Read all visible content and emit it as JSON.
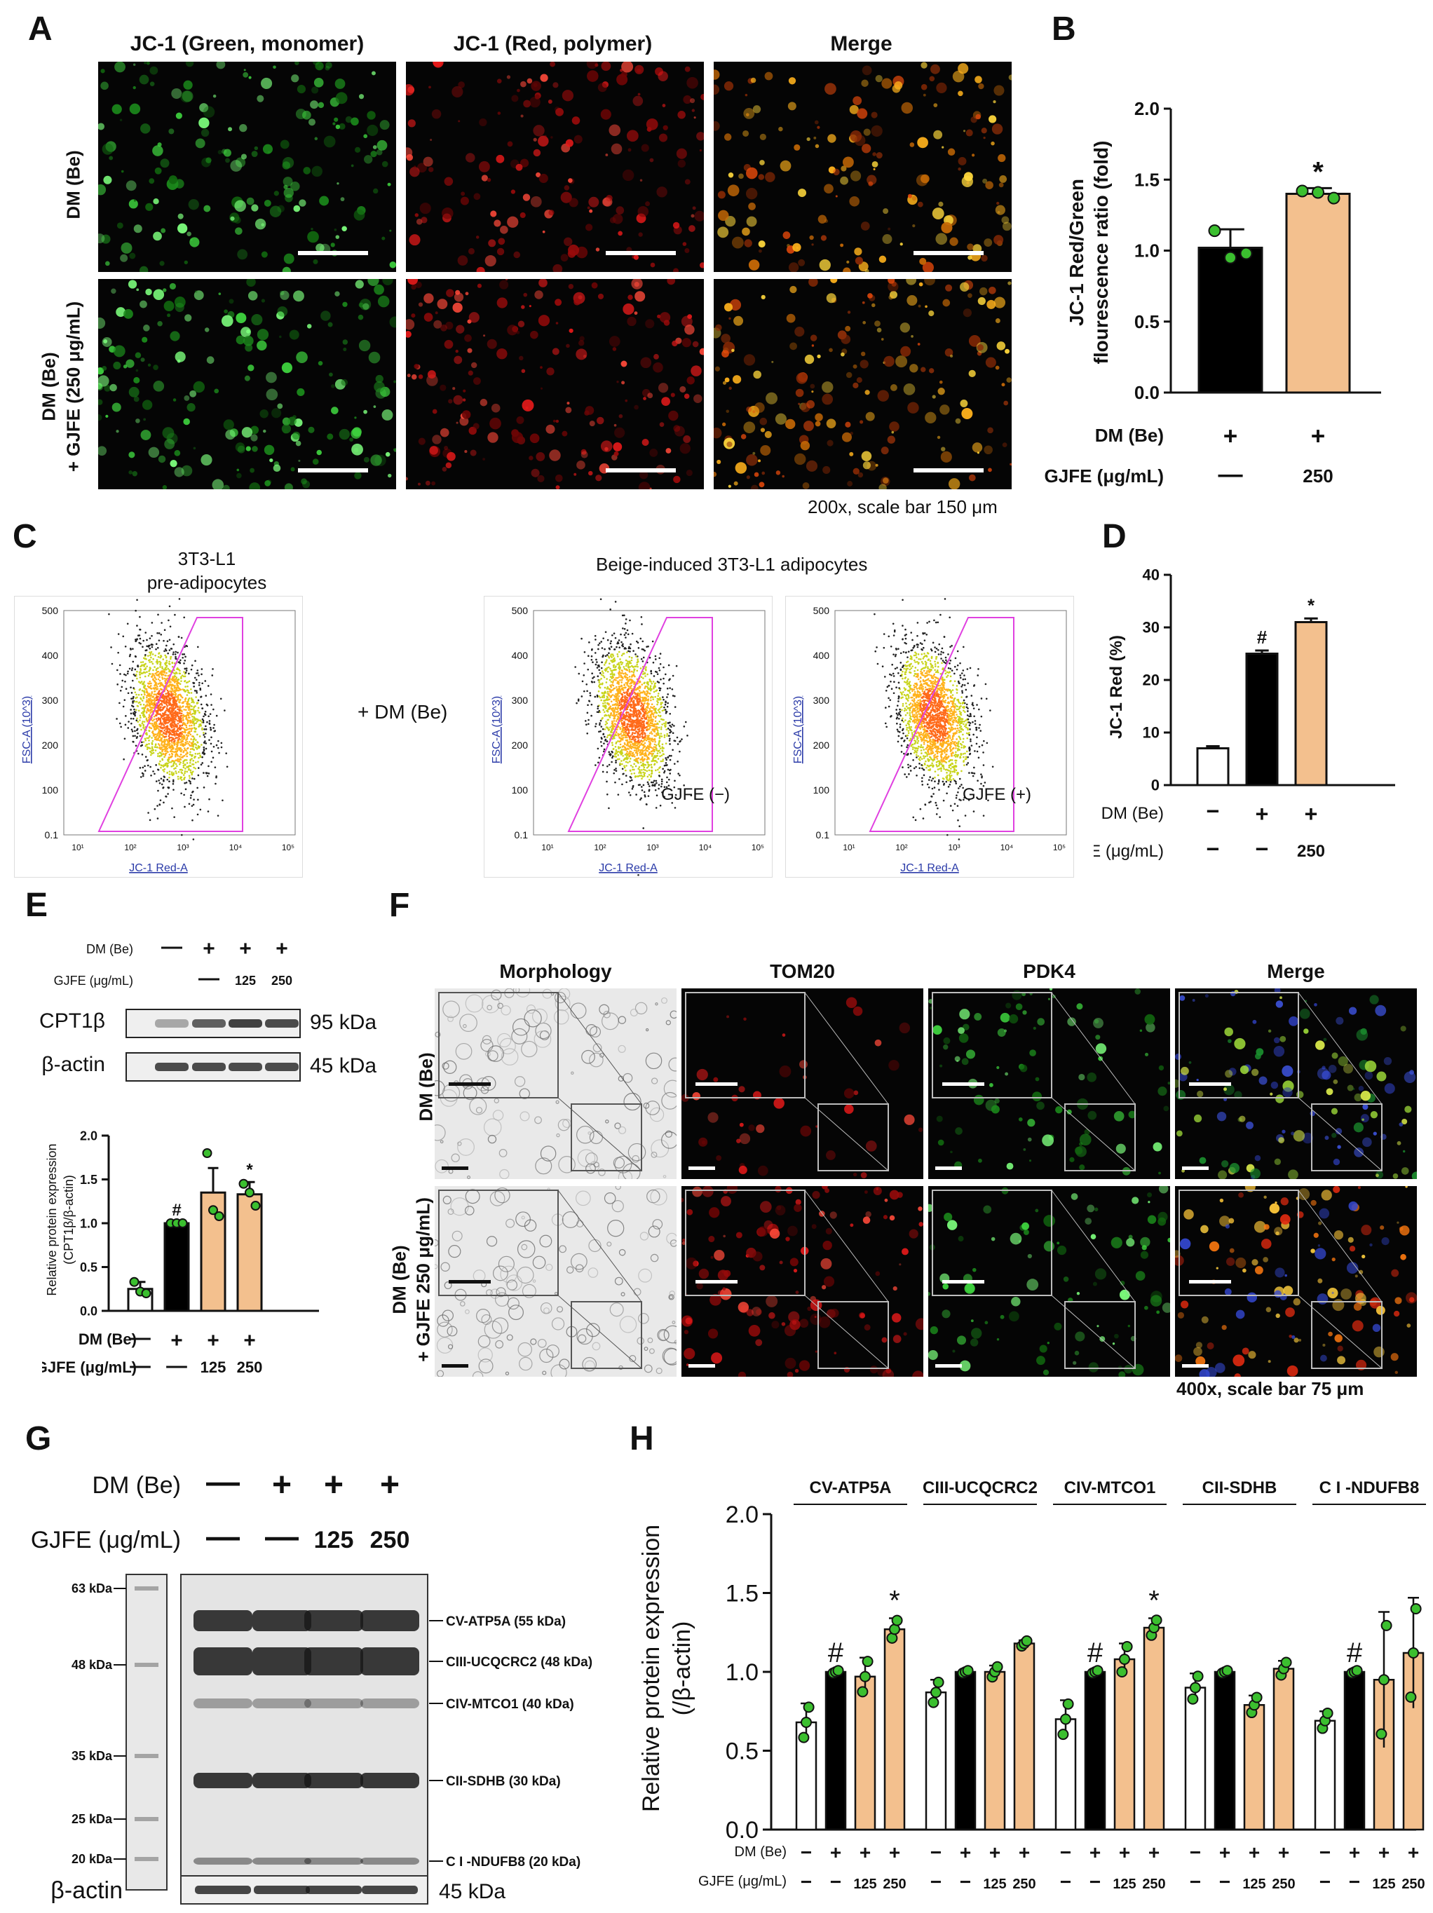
{
  "panelA": {
    "label": "A",
    "col_headers": [
      "JC-1 (Green, monomer)",
      "JC-1 (Red, polymer)",
      "Merge"
    ],
    "row_labels": [
      "DM (Be)",
      "DM (Be)",
      "+ GJFE (250 μg/mL)"
    ],
    "caption": "200x, scale bar 150 μm"
  },
  "panelB": {
    "label": "B",
    "chart_data": {
      "type": "bar",
      "ylabel": "JC-1 Red/Green flourescence ratio (fold)",
      "ylabel_lines": [
        "JC-1 Red/Green",
        "flourescence ratio (fold)"
      ],
      "ylim": [
        0,
        2.0
      ],
      "ticks": [
        "0.0",
        "0.5",
        "1.0",
        "1.5",
        "2.0"
      ],
      "values": [
        1.02,
        1.4
      ],
      "errors": [
        0.13,
        0.04
      ],
      "points": [
        [
          1.14,
          0.95,
          0.98
        ],
        [
          1.42,
          1.41,
          1.37
        ]
      ],
      "colors": [
        "#000000",
        "#F3C08E"
      ],
      "annotations": [
        "",
        "*"
      ],
      "rows": [
        {
          "label": "DM (Be)",
          "values": [
            "+",
            "+"
          ]
        },
        {
          "label": "GJFE (μg/mL)",
          "values": [
            "—",
            "250"
          ]
        }
      ]
    }
  },
  "panelC": {
    "label": "C",
    "title_left": [
      "3T3-L1",
      "pre-adipocytes"
    ],
    "title_right": "Beige-induced 3T3-L1 adipocytes",
    "middle_text": "+ DM (Be)",
    "yaxis_label": "FSC-A (10^3)",
    "xaxis_label": "JC-1 Red-A",
    "yticks": [
      "500",
      "400",
      "300",
      "200",
      "100",
      "0.1"
    ],
    "plot_labels": [
      "",
      "GJFE (−)",
      "GJFE (+)"
    ]
  },
  "panelD": {
    "label": "D",
    "chart_data": {
      "type": "bar",
      "ylabel": "JC-1 Red (%)",
      "ylim": [
        0,
        40
      ],
      "ticks": [
        "0",
        "10",
        "20",
        "30",
        "40"
      ],
      "values": [
        7.0,
        25.0,
        31.0
      ],
      "errors": [
        0.4,
        0.6,
        0.7
      ],
      "colors": [
        "#FFFFFF",
        "#000000",
        "#F3C08E"
      ],
      "annotations": [
        "",
        "#",
        "*"
      ],
      "rows": [
        {
          "label": "DM (Be)",
          "values": [
            "−",
            "+",
            "+"
          ]
        },
        {
          "label": "GJFE (μg/mL)",
          "values": [
            "−",
            "−",
            "250"
          ]
        }
      ]
    }
  },
  "panelE": {
    "label": "E",
    "rows": [
      {
        "label": "DM (Be)",
        "values": [
          "—",
          "+",
          "+",
          "+"
        ]
      },
      {
        "label": "GJFE (μg/mL)",
        "values": [
          "",
          "—",
          "125",
          "250"
        ]
      }
    ],
    "bands": [
      {
        "name": "CPT1β",
        "size": "95 kDa"
      },
      {
        "name": "β-actin",
        "size": "45 kDa"
      }
    ],
    "chart_data": {
      "type": "bar",
      "ylabel_lines": [
        "Relative protein expression",
        "(CPT1β/β-actin)"
      ],
      "ylim": [
        0,
        2.0
      ],
      "ticks": [
        "0.0",
        "0.5",
        "1.0",
        "1.5",
        "2.0"
      ],
      "values": [
        0.25,
        1.0,
        1.35,
        1.33
      ],
      "errors": [
        0.08,
        0.01,
        0.28,
        0.14
      ],
      "points": [
        [
          0.33,
          0.22,
          0.2
        ],
        [
          1.0,
          1.0,
          1.0
        ],
        [
          1.8,
          1.15,
          1.08
        ],
        [
          1.45,
          1.35,
          1.2
        ]
      ],
      "colors": [
        "#FFFFFF",
        "#000000",
        "#F3C08E",
        "#F3C08E"
      ],
      "annotations": [
        "",
        "#",
        "",
        "*"
      ],
      "rows": [
        {
          "label": "DM (Be)",
          "values": [
            "—",
            "+",
            "+",
            "+"
          ]
        },
        {
          "label": "GJFE (μg/mL)",
          "values": [
            "—",
            "—",
            "125",
            "250"
          ]
        }
      ]
    }
  },
  "panelF": {
    "label": "F",
    "col_headers": [
      "Morphology",
      "TOM20",
      "PDK4",
      "Merge"
    ],
    "row_labels": [
      "DM (Be)",
      "DM (Be)",
      "+ GJFE 250 μg/mL)"
    ],
    "caption": "400x, scale bar 75 μm"
  },
  "panelG": {
    "label": "G",
    "rows": [
      {
        "label": "DM (Be)",
        "values": [
          "—",
          "+",
          "+",
          "+"
        ]
      },
      {
        "label": "GJFE (μg/mL)",
        "values": [
          "—",
          "—",
          "125",
          "250"
        ]
      }
    ],
    "ladder": [
      "63 kDa",
      "48 kDa",
      "35 kDa",
      "25 kDa",
      "20 kDa"
    ],
    "bands": [
      "CV-ATP5A (55 kDa)",
      "CIII-UCQCRC2 (48 kDa)",
      "CIV-MTCO1 (40 kDa)",
      "CII-SDHB (30 kDa)",
      "C I -NDUFB8 (20 kDa)"
    ],
    "actin": {
      "name": "β-actin",
      "size": "45 kDa"
    }
  },
  "panelH": {
    "label": "H",
    "chart_data": {
      "type": "bar",
      "ylabel_lines": [
        "Relative protein expression",
        "(/β-actin)"
      ],
      "ylim": [
        0,
        2.0
      ],
      "ticks": [
        "0.0",
        "0.5",
        "1.0",
        "1.5",
        "2.0"
      ],
      "groups": [
        {
          "name": "CV-ATP5A",
          "values": [
            0.68,
            1.0,
            0.97,
            1.27
          ],
          "errors": [
            0.12,
            0.01,
            0.12,
            0.07
          ],
          "annotations": [
            "",
            "#",
            "",
            "*"
          ]
        },
        {
          "name": "CIII-UCQCRC2",
          "values": [
            0.87,
            1.0,
            1.0,
            1.18
          ],
          "errors": [
            0.08,
            0.01,
            0.04,
            0.02
          ],
          "annotations": [
            "",
            "",
            "",
            ""
          ]
        },
        {
          "name": "CIV-MTCO1",
          "values": [
            0.7,
            1.0,
            1.08,
            1.28
          ],
          "errors": [
            0.12,
            0.01,
            0.1,
            0.06
          ],
          "annotations": [
            "",
            "#",
            "",
            "*"
          ]
        },
        {
          "name": "CII-SDHB",
          "values": [
            0.9,
            1.0,
            0.79,
            1.02
          ],
          "errors": [
            0.09,
            0.01,
            0.06,
            0.05
          ],
          "annotations": [
            "",
            "",
            "",
            ""
          ]
        },
        {
          "name": "C I -NDUFB8",
          "values": [
            0.69,
            1.0,
            0.95,
            1.12
          ],
          "errors": [
            0.06,
            0.01,
            0.43,
            0.35
          ],
          "annotations": [
            "",
            "#",
            "",
            ""
          ]
        }
      ],
      "colors": [
        "#FFFFFF",
        "#000000",
        "#F3C08E",
        "#F3C08E"
      ],
      "rows": [
        {
          "label": "DM (Be)",
          "values": [
            "−",
            "+",
            "+",
            "+"
          ]
        },
        {
          "label": "GJFE (μg/mL)",
          "values": [
            "−",
            "−",
            "125",
            "250"
          ]
        }
      ]
    }
  }
}
